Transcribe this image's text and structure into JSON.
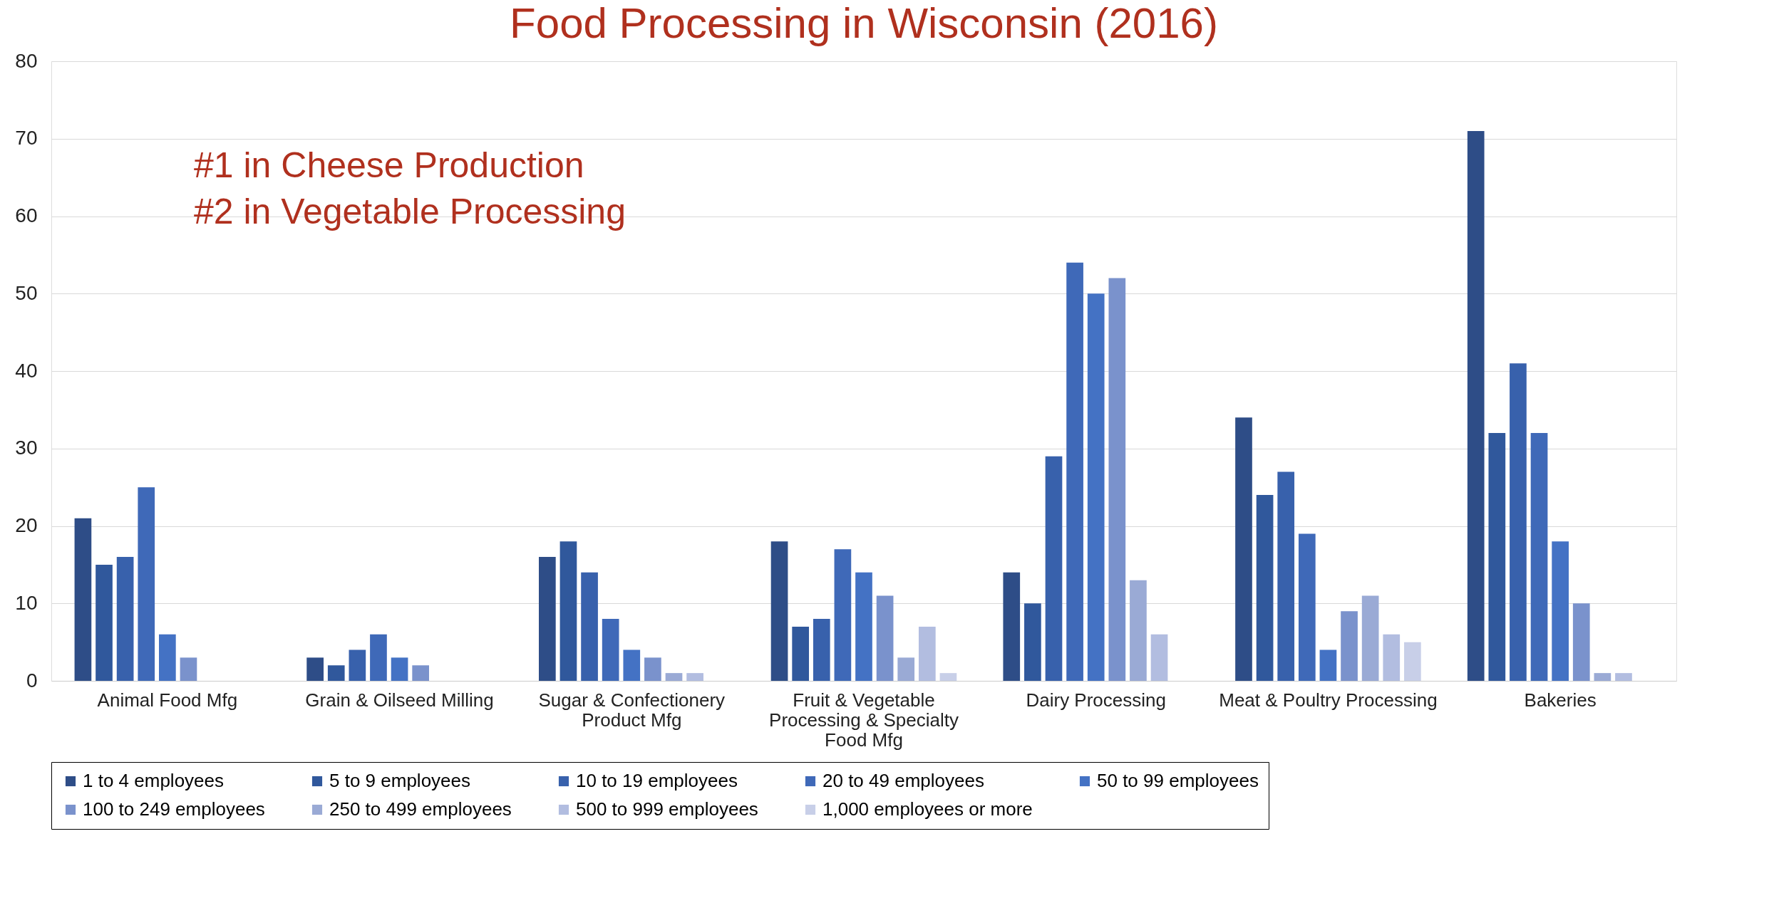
{
  "chart_data": {
    "type": "bar",
    "title": "Food Processing in Wisconsin (2016)",
    "categories": [
      "Animal Food Mfg",
      "Grain & Oilseed Milling",
      "Sugar & Confectionery Product Mfg",
      "Fruit & Vegetable Processing & Specialty Food Mfg",
      "Dairy Processing",
      "Meat & Poultry Processing",
      "Bakeries"
    ],
    "series": [
      {
        "name": "1 to 4 employees",
        "color": "#2e4d87",
        "values": [
          21,
          3,
          16,
          18,
          14,
          34,
          71
        ]
      },
      {
        "name": "5 to 9 employees",
        "color": "#30589c",
        "values": [
          15,
          2,
          18,
          7,
          10,
          24,
          32
        ]
      },
      {
        "name": "10 to 19 employees",
        "color": "#3861ac",
        "values": [
          16,
          4,
          14,
          8,
          29,
          27,
          41
        ]
      },
      {
        "name": "20 to 49 employees",
        "color": "#3f69b8",
        "values": [
          25,
          6,
          8,
          17,
          54,
          19,
          32
        ]
      },
      {
        "name": "50 to 99 employees",
        "color": "#4472c4",
        "values": [
          6,
          3,
          4,
          14,
          50,
          4,
          18
        ]
      },
      {
        "name": "100 to 249 employees",
        "color": "#7a92cc",
        "values": [
          3,
          2,
          3,
          11,
          52,
          9,
          10
        ]
      },
      {
        "name": "250 to 499 employees",
        "color": "#9aaad5",
        "values": [
          null,
          null,
          1,
          3,
          13,
          11,
          1
        ]
      },
      {
        "name": "500 to 999 employees",
        "color": "#b2bde0",
        "values": [
          null,
          null,
          1,
          7,
          6,
          6,
          1
        ]
      },
      {
        "name": "1,000 employees or more",
        "color": "#c8cfe8",
        "values": [
          null,
          null,
          null,
          1,
          null,
          5,
          null
        ]
      }
    ],
    "ylim": [
      0,
      80
    ],
    "yticks": [
      0,
      10,
      20,
      30,
      40,
      50,
      60,
      70,
      80
    ],
    "grid": "y",
    "legend": "bottom",
    "annotations": [
      "#1 in Cheese Production",
      "#2 in Vegetable Processing"
    ]
  }
}
